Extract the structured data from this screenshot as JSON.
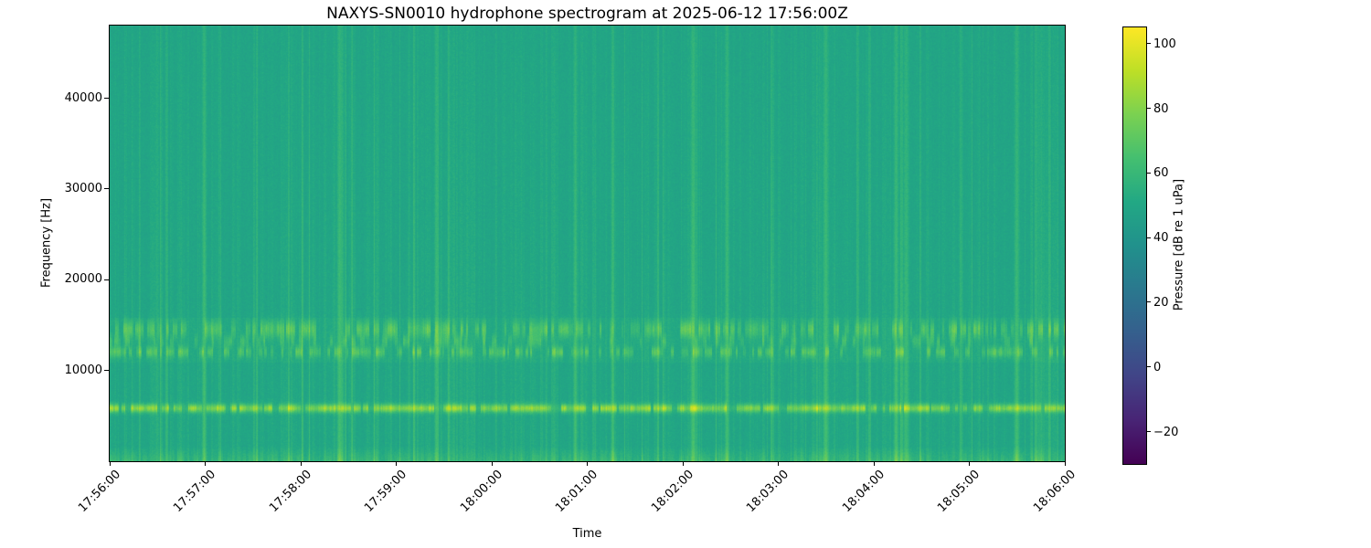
{
  "figure": {
    "title": "NAXYS-SN0010 hydrophone spectrogram at 2025-06-12 17:56:00Z",
    "xlabel": "Time",
    "ylabel": "Frequency [Hz]"
  },
  "chart_data": {
    "type": "heatmap",
    "title": "NAXYS-SN0010 hydrophone spectrogram at 2025-06-12 17:56:00Z",
    "xlabel": "Time",
    "ylabel": "Frequency [Hz]",
    "x_ticklabels": [
      "17:56:00",
      "17:57:00",
      "17:58:00",
      "17:59:00",
      "18:00:00",
      "18:01:00",
      "18:02:00",
      "18:03:00",
      "18:04:00",
      "18:05:00",
      "18:06:00"
    ],
    "x_tick_rotation_deg": 45,
    "x_span_seconds": 600,
    "y_ticks": [
      {
        "value": 10000,
        "label": "10000"
      },
      {
        "value": 20000,
        "label": "20000"
      },
      {
        "value": 30000,
        "label": "30000"
      },
      {
        "value": 40000,
        "label": "40000"
      }
    ],
    "ylim_hz": [
      0,
      48000
    ],
    "grid": false,
    "legend": "none",
    "colorbar": {
      "label": "Pressure [dB re 1 uPa]",
      "position": "right",
      "ticks": [
        {
          "value": 100,
          "label": "100"
        },
        {
          "value": 80,
          "label": "80"
        },
        {
          "value": 60,
          "label": "60"
        },
        {
          "value": 40,
          "label": "40"
        },
        {
          "value": 20,
          "label": "20"
        },
        {
          "value": 0,
          "label": "0"
        },
        {
          "value": -20,
          "label": "−20"
        }
      ],
      "clim": [
        -30,
        105
      ],
      "colormap": "viridis"
    },
    "colormap_stops": [
      "#440154",
      "#482475",
      "#414487",
      "#355f8d",
      "#2a788e",
      "#21918c",
      "#22a884",
      "#44bf70",
      "#7ad151",
      "#bddf26",
      "#fde725"
    ],
    "content": {
      "description": "Broadband ambient field near 48 dB re 1 uPa with repetitive vertical broadband transients (click trains) across the whole record, a bright quasi-continuous tonal band near 6 kHz reaching ~85 dB, dense speckled dashed bands between ~11 and ~15.5 kHz reaching ~70 dB, and a slightly elevated low-frequency band below ~1.5 kHz.",
      "background_db": 48,
      "noise_db": 2.5,
      "tonal_band_hz": 5800,
      "tonal_band_sigma_hz": 330,
      "tonal_band_peak_db": 85,
      "speckle_bands_hz": [
        14500,
        13200,
        12000
      ],
      "speckle_band_peak_db": 70,
      "mid_band_range_hz": [
        10800,
        15800
      ],
      "low_band_top_hz": 1600,
      "low_band_boost_db": 6,
      "transient_peak_boost_db": 16,
      "seed": 1337
    }
  }
}
